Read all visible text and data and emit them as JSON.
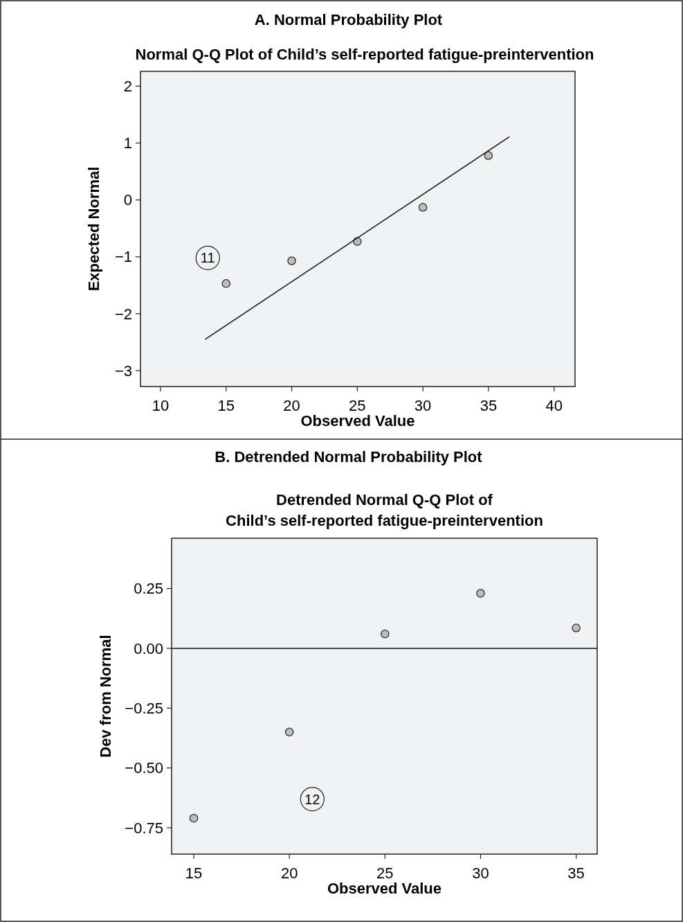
{
  "chart_data": [
    {
      "type": "scatter",
      "title": "A. Normal Probability Plot",
      "subtitle": "Normal Q-Q Plot of Child’s self-reported fatigue-preintervention",
      "xlabel": "Observed Value",
      "ylabel": "Expected Normal",
      "xlim": [
        8.47,
        41.6
      ],
      "ylim": [
        -3.28,
        2.26
      ],
      "xticks": [
        10,
        15,
        20,
        25,
        30,
        35,
        40
      ],
      "yticks": [
        {
          "value": -3,
          "label": "−3"
        },
        {
          "value": -2,
          "label": "−2"
        },
        {
          "value": -1,
          "label": "−1"
        },
        0,
        1,
        2
      ],
      "grid": false,
      "series": [
        {
          "marker": "circle",
          "color": "#bdbdbd",
          "x": [
            15,
            20,
            25,
            30,
            35
          ],
          "values": [
            -1.47,
            -1.07,
            -0.73,
            -0.13,
            0.78
          ]
        },
        {
          "type": "line",
          "marker": "none",
          "color": "#111111",
          "x": [
            13.4,
            36.6
          ],
          "values": [
            -2.45,
            1.11
          ]
        }
      ],
      "annotations": [
        {
          "text": "11",
          "x": 13.6,
          "y": -1.02
        }
      ]
    },
    {
      "type": "scatter",
      "title": "B. Detrended Normal Probability Plot",
      "subtitle": "Detrended Normal Q-Q Plot of\nChild’s self-reported fatigue-preintervention",
      "xlabel": "Observed Value",
      "ylabel": "Dev from Normal",
      "xlim": [
        13.84,
        36.1
      ],
      "ylim": [
        -0.86,
        0.46
      ],
      "xticks": [
        15,
        20,
        25,
        30,
        35
      ],
      "yticks": [
        {
          "value": -0.75,
          "label": "−0.75"
        },
        {
          "value": -0.5,
          "label": "−0.50"
        },
        {
          "value": -0.25,
          "label": "−0.25"
        },
        {
          "value": 0,
          "label": "0.00"
        },
        0.25
      ],
      "grid": false,
      "marker": "circle",
      "series": [
        {
          "color": "#bdbdbd",
          "x": [
            15,
            20,
            25,
            30,
            35
          ],
          "values": [
            -0.71,
            -0.35,
            0.06,
            0.23,
            0.085
          ]
        }
      ],
      "ref_lines": [
        {
          "axis": "y",
          "value": 0,
          "color": "#111111"
        }
      ],
      "annotations": [
        {
          "text": "12",
          "x": 21.2,
          "y": -0.63
        }
      ]
    }
  ]
}
